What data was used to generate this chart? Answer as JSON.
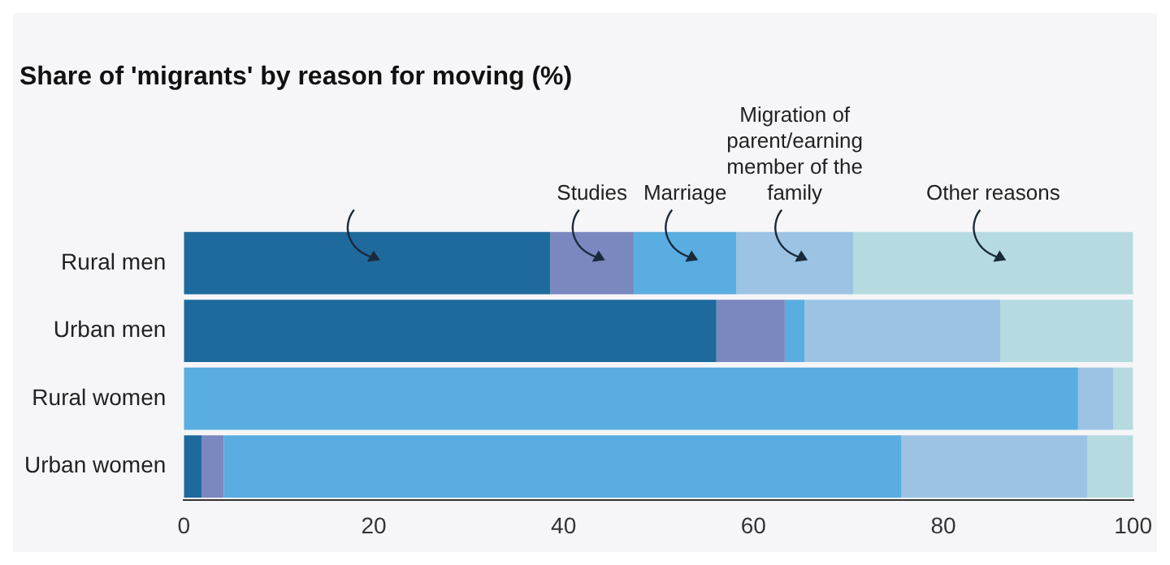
{
  "chart_data": {
    "type": "bar",
    "orientation": "horizontal",
    "stacked": true,
    "title": "Share of 'migrants' by reason for moving (%)",
    "categories": [
      "Rural men",
      "Urban men",
      "Rural women",
      "Urban women"
    ],
    "series": [
      {
        "color": "#1f6a9c",
        "values": [
          38.6,
          56.1,
          0,
          1.9
        ]
      },
      {
        "name": "Studies",
        "color": "#7b87bf",
        "values": [
          8.8,
          7.2,
          0,
          2.3
        ]
      },
      {
        "name": "Marriage",
        "color": "#5aade0",
        "values": [
          10.8,
          2.1,
          94.2,
          71.4
        ]
      },
      {
        "name": "Migration of parent/earning member of the family",
        "color": "#9cc3e4",
        "values": [
          12.3,
          20.6,
          3.7,
          19.6
        ]
      },
      {
        "name": "Other reasons",
        "color": "#b5dbe0",
        "values": [
          29.5,
          14.0,
          2.1,
          4.8
        ]
      }
    ],
    "xlim": [
      0,
      100
    ],
    "xticks": [
      0,
      20,
      40,
      60,
      80,
      100
    ],
    "grid": false,
    "legend": false
  }
}
